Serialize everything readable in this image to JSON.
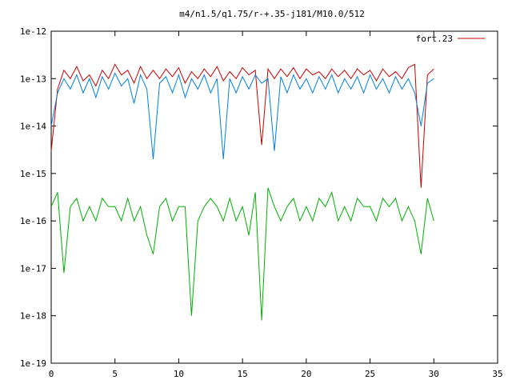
{
  "chart_data": {
    "type": "line",
    "title": "m4/n1.5/q1.75/r-+.35-j181/M10.0/512",
    "xlabel": "",
    "ylabel": "",
    "xlim": [
      0,
      35
    ],
    "ylim": [
      1e-19,
      1e-12
    ],
    "y_scale": "log",
    "grid": false,
    "legend_position": "top-right",
    "x_ticks": [
      "0",
      "5",
      "10",
      "15",
      "20",
      "25",
      "30",
      "35"
    ],
    "y_ticks": [
      "1e-19",
      "1e-18",
      "1e-17",
      "1e-16",
      "1e-15",
      "1e-14",
      "1e-13",
      "1e-12"
    ],
    "series": [
      {
        "name": "fort.23",
        "color": "#cc0000",
        "x": [
          0,
          0.5,
          1,
          1.5,
          2,
          2.5,
          3,
          3.5,
          4,
          4.5,
          5,
          5.5,
          6,
          6.5,
          7,
          7.5,
          8,
          8.5,
          9,
          9.5,
          10,
          10.5,
          11,
          11.5,
          12,
          12.5,
          13,
          13.5,
          14,
          14.5,
          15,
          15.5,
          16,
          16.5,
          17,
          17.5,
          18,
          18.5,
          19,
          19.5,
          20,
          20.5,
          21,
          21.5,
          22,
          22.5,
          23,
          23.5,
          24,
          24.5,
          25,
          25.5,
          26,
          26.5,
          27,
          27.5,
          28,
          28.5,
          29,
          29.5,
          30
        ],
        "y": [
          3e-15,
          6e-14,
          1.5e-13,
          1e-13,
          1.8e-13,
          9e-14,
          1.2e-13,
          7e-14,
          1.5e-13,
          1e-13,
          2e-13,
          1.2e-13,
          1.5e-13,
          8e-14,
          1.8e-13,
          1e-13,
          1.5e-13,
          1e-13,
          1.6e-13,
          1.1e-13,
          1.7e-13,
          8e-14,
          1.4e-13,
          1e-13,
          1.6e-13,
          1.1e-13,
          1.8e-13,
          9e-14,
          1.4e-13,
          1e-13,
          1.7e-13,
          1.2e-13,
          1.5e-13,
          4e-15,
          1.6e-13,
          1e-13,
          1.6e-13,
          1.1e-13,
          1.7e-13,
          1e-13,
          1.6e-13,
          1.2e-13,
          1.4e-13,
          1e-13,
          1.6e-13,
          1.1e-13,
          1.5e-13,
          1e-13,
          1.6e-13,
          1.2e-13,
          1.5e-13,
          9e-14,
          1.6e-13,
          1.1e-13,
          1.4e-13,
          1e-13,
          1.7e-13,
          2e-13,
          5e-16,
          1.2e-13,
          1.6e-13
        ]
      },
      {
        "name": "",
        "color": "#0080e0",
        "x": [
          0,
          0.5,
          1,
          1.5,
          2,
          2.5,
          3,
          3.5,
          4,
          4.5,
          5,
          5.5,
          6,
          6.5,
          7,
          7.5,
          8,
          8.5,
          9,
          9.5,
          10,
          10.5,
          11,
          11.5,
          12,
          12.5,
          13,
          13.5,
          14,
          14.5,
          15,
          15.5,
          16,
          16.5,
          17,
          17.5,
          18,
          18.5,
          19,
          19.5,
          20,
          20.5,
          21,
          21.5,
          22,
          22.5,
          23,
          23.5,
          24,
          24.5,
          25,
          25.5,
          26,
          26.5,
          27,
          27.5,
          28,
          28.5,
          29,
          29.5,
          30
        ],
        "y": [
          1e-14,
          5e-14,
          1e-13,
          6e-14,
          1.2e-13,
          5e-14,
          1e-13,
          4e-14,
          1.1e-13,
          6e-14,
          1.3e-13,
          7e-14,
          1e-13,
          3e-14,
          1.2e-13,
          6e-14,
          2e-15,
          8e-14,
          1.1e-13,
          5e-14,
          1.2e-13,
          4e-14,
          1e-13,
          6e-14,
          1.2e-13,
          5e-14,
          1e-13,
          2e-15,
          1e-13,
          5e-14,
          1.1e-13,
          6e-14,
          1.2e-13,
          8e-14,
          1e-13,
          3e-15,
          1.1e-13,
          5e-14,
          1.2e-13,
          6e-14,
          1e-13,
          5e-14,
          1.1e-13,
          6e-14,
          1.2e-13,
          5e-14,
          1e-13,
          6e-14,
          1.1e-13,
          5e-14,
          1.2e-13,
          6e-14,
          1e-13,
          5e-14,
          1.1e-13,
          6e-14,
          1e-13,
          5e-14,
          1e-14,
          8e-14,
          1e-13
        ]
      },
      {
        "name": "",
        "color": "#00b000",
        "x": [
          0,
          0.5,
          1,
          1.5,
          2,
          2.5,
          3,
          3.5,
          4,
          4.5,
          5,
          5.5,
          6,
          6.5,
          7,
          7.5,
          8,
          8.5,
          9,
          9.5,
          10,
          10.5,
          11,
          11.5,
          12,
          12.5,
          13,
          13.5,
          14,
          14.5,
          15,
          15.5,
          16,
          16.5,
          17,
          17.5,
          18,
          18.5,
          19,
          19.5,
          20,
          20.5,
          21,
          21.5,
          22,
          22.5,
          23,
          23.5,
          24,
          24.5,
          25,
          25.5,
          26,
          26.5,
          27,
          27.5,
          28,
          28.5,
          29,
          29.5,
          30
        ],
        "y": [
          2e-16,
          4e-16,
          8e-18,
          2e-16,
          3e-16,
          1e-16,
          2e-16,
          1e-16,
          3e-16,
          2e-16,
          2e-16,
          1e-16,
          3e-16,
          1e-16,
          2e-16,
          5e-17,
          2e-17,
          2e-16,
          3e-16,
          1e-16,
          2e-16,
          2e-16,
          1e-18,
          1e-16,
          2e-16,
          3e-16,
          2e-16,
          1e-16,
          3e-16,
          1e-16,
          2e-16,
          5e-17,
          4e-16,
          8e-19,
          5e-16,
          2e-16,
          1e-16,
          2e-16,
          3e-16,
          1e-16,
          2e-16,
          1e-16,
          3e-16,
          2e-16,
          4e-16,
          1e-16,
          2e-16,
          1e-16,
          3e-16,
          2e-16,
          2e-16,
          1e-16,
          3e-16,
          2e-16,
          3e-16,
          1e-16,
          2e-16,
          1e-16,
          2e-17,
          3e-16,
          1e-16
        ]
      }
    ]
  }
}
